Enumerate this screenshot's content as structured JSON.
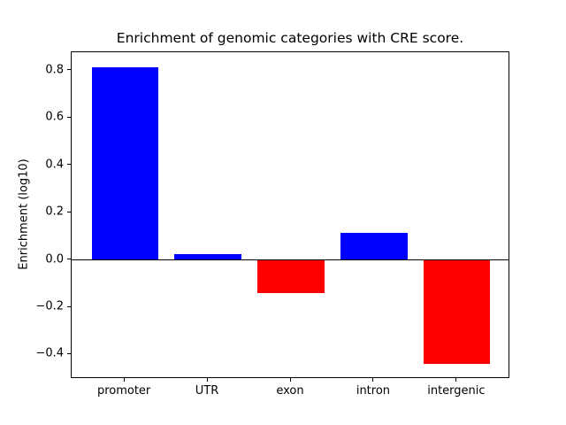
{
  "figure": {
    "title": "Enrichment of genomic categories with CRE score.",
    "ylabel": "Enrichment (log10)"
  },
  "chart_data": {
    "type": "bar",
    "title": "Enrichment of genomic categories with CRE score.",
    "xlabel": "",
    "ylabel": "Enrichment (log10)",
    "categories": [
      "promoter",
      "UTR",
      "exon",
      "intron",
      "intergenic"
    ],
    "values": [
      0.815,
      0.025,
      -0.14,
      0.115,
      -0.44
    ],
    "positive_color": "#0000ff",
    "negative_color": "#ff0000",
    "axis_color": "#000000",
    "background_color": "#ffffff",
    "ylim": [
      -0.503,
      0.878
    ],
    "y_ticks": [
      -0.4,
      -0.2,
      0.0,
      0.2,
      0.4,
      0.6,
      0.8
    ],
    "y_tick_labels": [
      "−0.4",
      "−0.2",
      "0.0",
      "0.2",
      "0.4",
      "0.6",
      "0.8"
    ],
    "zero_line": true,
    "grid": false,
    "legend": null
  }
}
